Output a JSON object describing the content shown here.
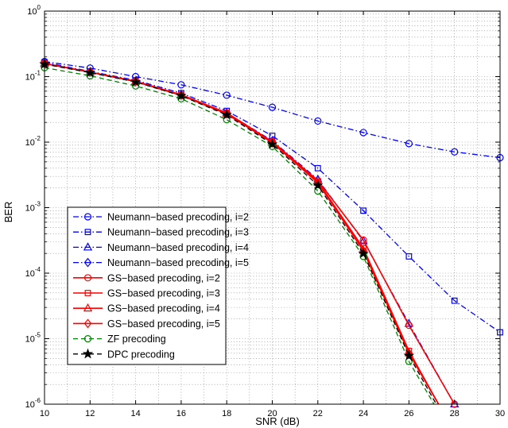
{
  "chart_data": {
    "type": "line",
    "title": "",
    "xlabel": "SNR (dB)",
    "ylabel": "BER",
    "xlim": [
      10,
      30
    ],
    "ylim": [
      1e-06,
      1
    ],
    "yscale": "log",
    "grid": true,
    "legend_position": "bottom-left",
    "x_ticks": [
      10,
      12,
      14,
      16,
      18,
      20,
      22,
      24,
      26,
      28,
      30
    ],
    "x_tick_labels": [
      "10",
      "12",
      "14",
      "16",
      "18",
      "20",
      "22",
      "24",
      "26",
      "28",
      "30"
    ],
    "y_ticks": [
      1,
      0.1,
      0.01,
      0.001,
      0.0001,
      1e-05,
      1e-06
    ],
    "y_tick_labels": [
      {
        "base": "10",
        "exp": "0"
      },
      {
        "base": "10",
        "exp": "-1"
      },
      {
        "base": "10",
        "exp": "-2"
      },
      {
        "base": "10",
        "exp": "-3"
      },
      {
        "base": "10",
        "exp": "-4"
      },
      {
        "base": "10",
        "exp": "-5"
      },
      {
        "base": "10",
        "exp": "-6"
      }
    ],
    "series": [
      {
        "name": "Neumann−based precoding, i=2",
        "color": "#0000ff",
        "dash": "dashdot",
        "marker": "circle",
        "x": [
          10,
          12,
          14,
          16,
          18,
          20,
          22,
          24,
          26,
          28,
          30
        ],
        "y": [
          0.17,
          0.135,
          0.1,
          0.075,
          0.052,
          0.034,
          0.021,
          0.014,
          0.0095,
          0.0071,
          0.0058
        ]
      },
      {
        "name": "Neumann−based precoding, i=3",
        "color": "#0000ff",
        "dash": "dashdot",
        "marker": "square",
        "x": [
          10,
          12,
          14,
          16,
          18,
          20,
          22,
          24,
          26,
          28,
          30
        ],
        "y": [
          0.165,
          0.12,
          0.088,
          0.056,
          0.03,
          0.0125,
          0.004,
          0.0009,
          0.00018,
          3.8e-05,
          1.25e-05
        ]
      },
      {
        "name": "Neumann−based precoding, i=4",
        "color": "#0000ff",
        "dash": "dashdot",
        "marker": "triangle",
        "x": [
          10,
          12,
          14,
          16,
          18,
          20,
          22,
          24,
          26,
          28
        ],
        "y": [
          0.16,
          0.118,
          0.085,
          0.053,
          0.028,
          0.0105,
          0.0027,
          0.00031,
          1.7e-05,
          1e-06
        ]
      },
      {
        "name": "Neumann−based precoding, i=5",
        "color": "#0000ff",
        "dash": "dashdot",
        "marker": "diamond",
        "x": [
          10,
          12,
          14,
          16,
          18,
          20,
          22,
          24,
          26
        ],
        "y": [
          0.158,
          0.117,
          0.084,
          0.052,
          0.027,
          0.0098,
          0.0024,
          0.00022,
          6e-06
        ]
      },
      {
        "name": "GS−based precoding, i=2",
        "color": "#ff0000",
        "dash": "solid",
        "marker": "circle",
        "x": [
          10,
          12,
          14,
          16,
          18,
          20,
          22,
          24,
          26,
          28
        ],
        "y": [
          0.16,
          0.117,
          0.085,
          0.053,
          0.028,
          0.0102,
          0.0026,
          0.00032,
          1.6e-05,
          1e-06
        ]
      },
      {
        "name": "GS−based precoding, i=3",
        "color": "#ff0000",
        "dash": "solid",
        "marker": "square",
        "x": [
          10,
          12,
          14,
          16,
          18,
          20,
          22,
          24,
          26,
          27.3
        ],
        "y": [
          0.158,
          0.117,
          0.084,
          0.052,
          0.027,
          0.0099,
          0.0025,
          0.00024,
          6.5e-06,
          1e-06
        ]
      },
      {
        "name": "GS−based precoding, i=4",
        "color": "#ff0000",
        "dash": "solid",
        "marker": "triangle",
        "x": [
          10,
          12,
          14,
          16,
          18,
          20,
          22,
          24,
          26,
          27.3
        ],
        "y": [
          0.158,
          0.117,
          0.084,
          0.052,
          0.027,
          0.0098,
          0.0024,
          0.00022,
          6e-06,
          1e-06
        ]
      },
      {
        "name": "GS−based precoding, i=5",
        "color": "#ff0000",
        "dash": "solid",
        "marker": "diamond",
        "x": [
          10,
          12,
          14,
          16,
          18,
          20,
          22,
          24,
          26,
          27.3
        ],
        "y": [
          0.158,
          0.117,
          0.084,
          0.052,
          0.027,
          0.0098,
          0.0024,
          0.00022,
          6e-06,
          1e-06
        ]
      },
      {
        "name": "ZF precoding",
        "color": "#008000",
        "dash": "dashed",
        "marker": "circle",
        "x": [
          10,
          12,
          14,
          16,
          18,
          20,
          22,
          24,
          26,
          27.1
        ],
        "y": [
          0.137,
          0.103,
          0.072,
          0.046,
          0.022,
          0.0086,
          0.0018,
          0.00018,
          4.5e-06,
          1e-06
        ]
      },
      {
        "name": "DPC precoding",
        "color": "#000000",
        "dash": "dashed",
        "marker": "star",
        "x": [
          10,
          12,
          14,
          16,
          18,
          20,
          22,
          24,
          26,
          27.2
        ],
        "y": [
          0.155,
          0.115,
          0.083,
          0.051,
          0.026,
          0.0093,
          0.0022,
          0.0002,
          5.5e-06,
          1e-06
        ]
      }
    ]
  }
}
